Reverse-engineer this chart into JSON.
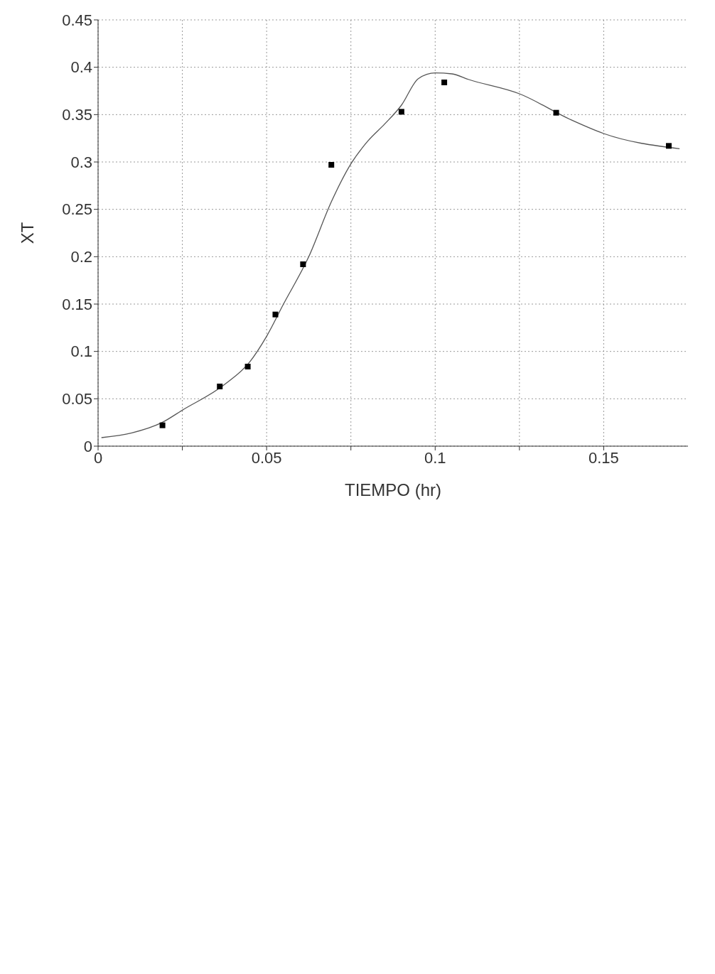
{
  "chart_data": {
    "type": "scatter",
    "xlabel": "TIEMPO (hr)",
    "ylabel": "XT",
    "xlim": [
      0,
      0.175
    ],
    "xticks": [
      0,
      {
        "value": 0.025,
        "label": null
      },
      0.05,
      {
        "value": 0.075,
        "label": null
      },
      0.1,
      {
        "value": 0.125,
        "label": null
      },
      0.15
    ],
    "ylim": [
      0,
      0.45
    ],
    "yticks": [
      0,
      0.05,
      0.1,
      0.15,
      0.2,
      0.25,
      0.3,
      0.35,
      0.4,
      0.45
    ],
    "grid": true,
    "series": [
      {
        "marker": "square",
        "color": "#000000",
        "x": [
          0.0191,
          0.0361,
          0.0444,
          0.0526,
          0.0608,
          0.0692,
          0.09,
          0.1027,
          0.1359,
          0.1693
        ],
        "values": [
          0.022,
          0.063,
          0.084,
          0.139,
          0.192,
          0.297,
          0.353,
          0.384,
          0.352,
          0.317
        ]
      },
      {
        "type": "line",
        "marker": "none",
        "line_style": "solid",
        "color": "#555555",
        "x": [
          0.001,
          0.01,
          0.019,
          0.025,
          0.0375,
          0.045,
          0.05,
          0.055,
          0.0625,
          0.0692,
          0.075,
          0.08,
          0.085,
          0.09,
          0.095,
          0.1,
          0.105,
          0.11,
          0.125,
          0.14,
          0.15,
          0.1725
        ],
        "values": [
          0.009,
          0.014,
          0.025,
          0.038,
          0.065,
          0.089,
          0.116,
          0.15,
          0.2,
          0.258,
          0.298,
          0.322,
          0.34,
          0.36,
          0.388,
          0.394,
          0.393,
          0.387,
          0.372,
          0.345,
          0.33,
          0.314
        ]
      }
    ]
  }
}
